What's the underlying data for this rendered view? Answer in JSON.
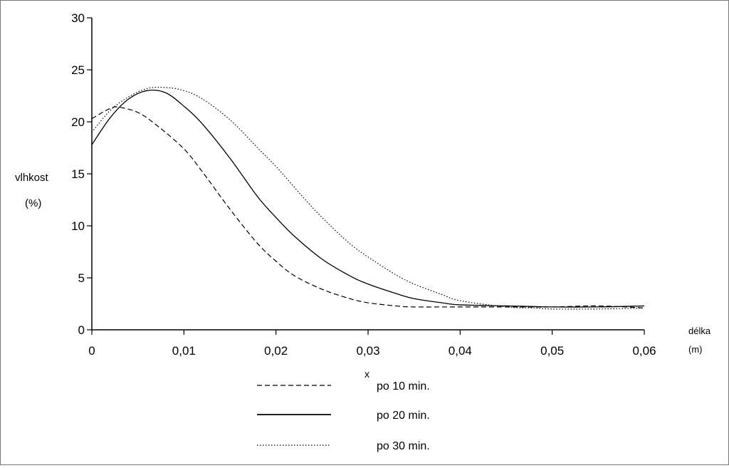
{
  "chart_data": {
    "type": "line",
    "title": "",
    "ylabel": "vlhkost",
    "ylabel_unit": "(%)",
    "xlabel": "délka",
    "xlabel_unit": "(m)",
    "x_symbol": "x",
    "xlim": [
      0,
      0.06
    ],
    "ylim": [
      0,
      30
    ],
    "x_ticks": [
      0,
      0.01,
      0.02,
      0.03,
      0.04,
      0.05,
      0.06
    ],
    "x_tick_labels": [
      "0",
      "0,01",
      "0,02",
      "0,03",
      "0,04",
      "0,05",
      "0,06"
    ],
    "y_ticks": [
      0,
      5,
      10,
      15,
      20,
      25,
      30
    ],
    "y_tick_labels": [
      "0",
      "5",
      "10",
      "15",
      "20",
      "25",
      "30"
    ],
    "grid": false,
    "legend_position": "bottom-center",
    "series": [
      {
        "name": "po 10 min.",
        "style": "dashed",
        "x": [
          0,
          0.002,
          0.003,
          0.005,
          0.007,
          0.01,
          0.012,
          0.015,
          0.018,
          0.02,
          0.022,
          0.025,
          0.028,
          0.03,
          0.033,
          0.035,
          0.04,
          0.045,
          0.05,
          0.055,
          0.06
        ],
        "y": [
          20.3,
          21.3,
          21.4,
          20.9,
          19.7,
          17.4,
          15.2,
          11.6,
          8.3,
          6.6,
          5.2,
          3.9,
          3.0,
          2.6,
          2.3,
          2.2,
          2.2,
          2.2,
          2.2,
          2.3,
          2.1
        ]
      },
      {
        "name": "po 20 min.",
        "style": "solid",
        "x": [
          0,
          0.002,
          0.004,
          0.006,
          0.008,
          0.01,
          0.012,
          0.015,
          0.018,
          0.02,
          0.022,
          0.025,
          0.028,
          0.03,
          0.033,
          0.035,
          0.038,
          0.04,
          0.045,
          0.05,
          0.055,
          0.06
        ],
        "y": [
          17.8,
          20.4,
          22.2,
          23.0,
          22.8,
          21.5,
          19.8,
          16.5,
          12.8,
          10.8,
          9.0,
          6.8,
          5.2,
          4.4,
          3.5,
          3.0,
          2.6,
          2.4,
          2.3,
          2.2,
          2.2,
          2.3
        ]
      },
      {
        "name": "po 30 min.",
        "style": "dotted",
        "x": [
          0,
          0.002,
          0.004,
          0.006,
          0.008,
          0.01,
          0.012,
          0.015,
          0.018,
          0.02,
          0.023,
          0.025,
          0.028,
          0.03,
          0.033,
          0.035,
          0.038,
          0.04,
          0.045,
          0.048,
          0.05,
          0.055,
          0.06
        ],
        "y": [
          19.0,
          21.1,
          22.4,
          23.2,
          23.3,
          23.0,
          22.2,
          20.2,
          17.5,
          15.7,
          12.7,
          10.8,
          8.3,
          7.0,
          5.3,
          4.4,
          3.4,
          2.8,
          2.2,
          2.1,
          2.0,
          2.0,
          2.1
        ]
      }
    ]
  }
}
